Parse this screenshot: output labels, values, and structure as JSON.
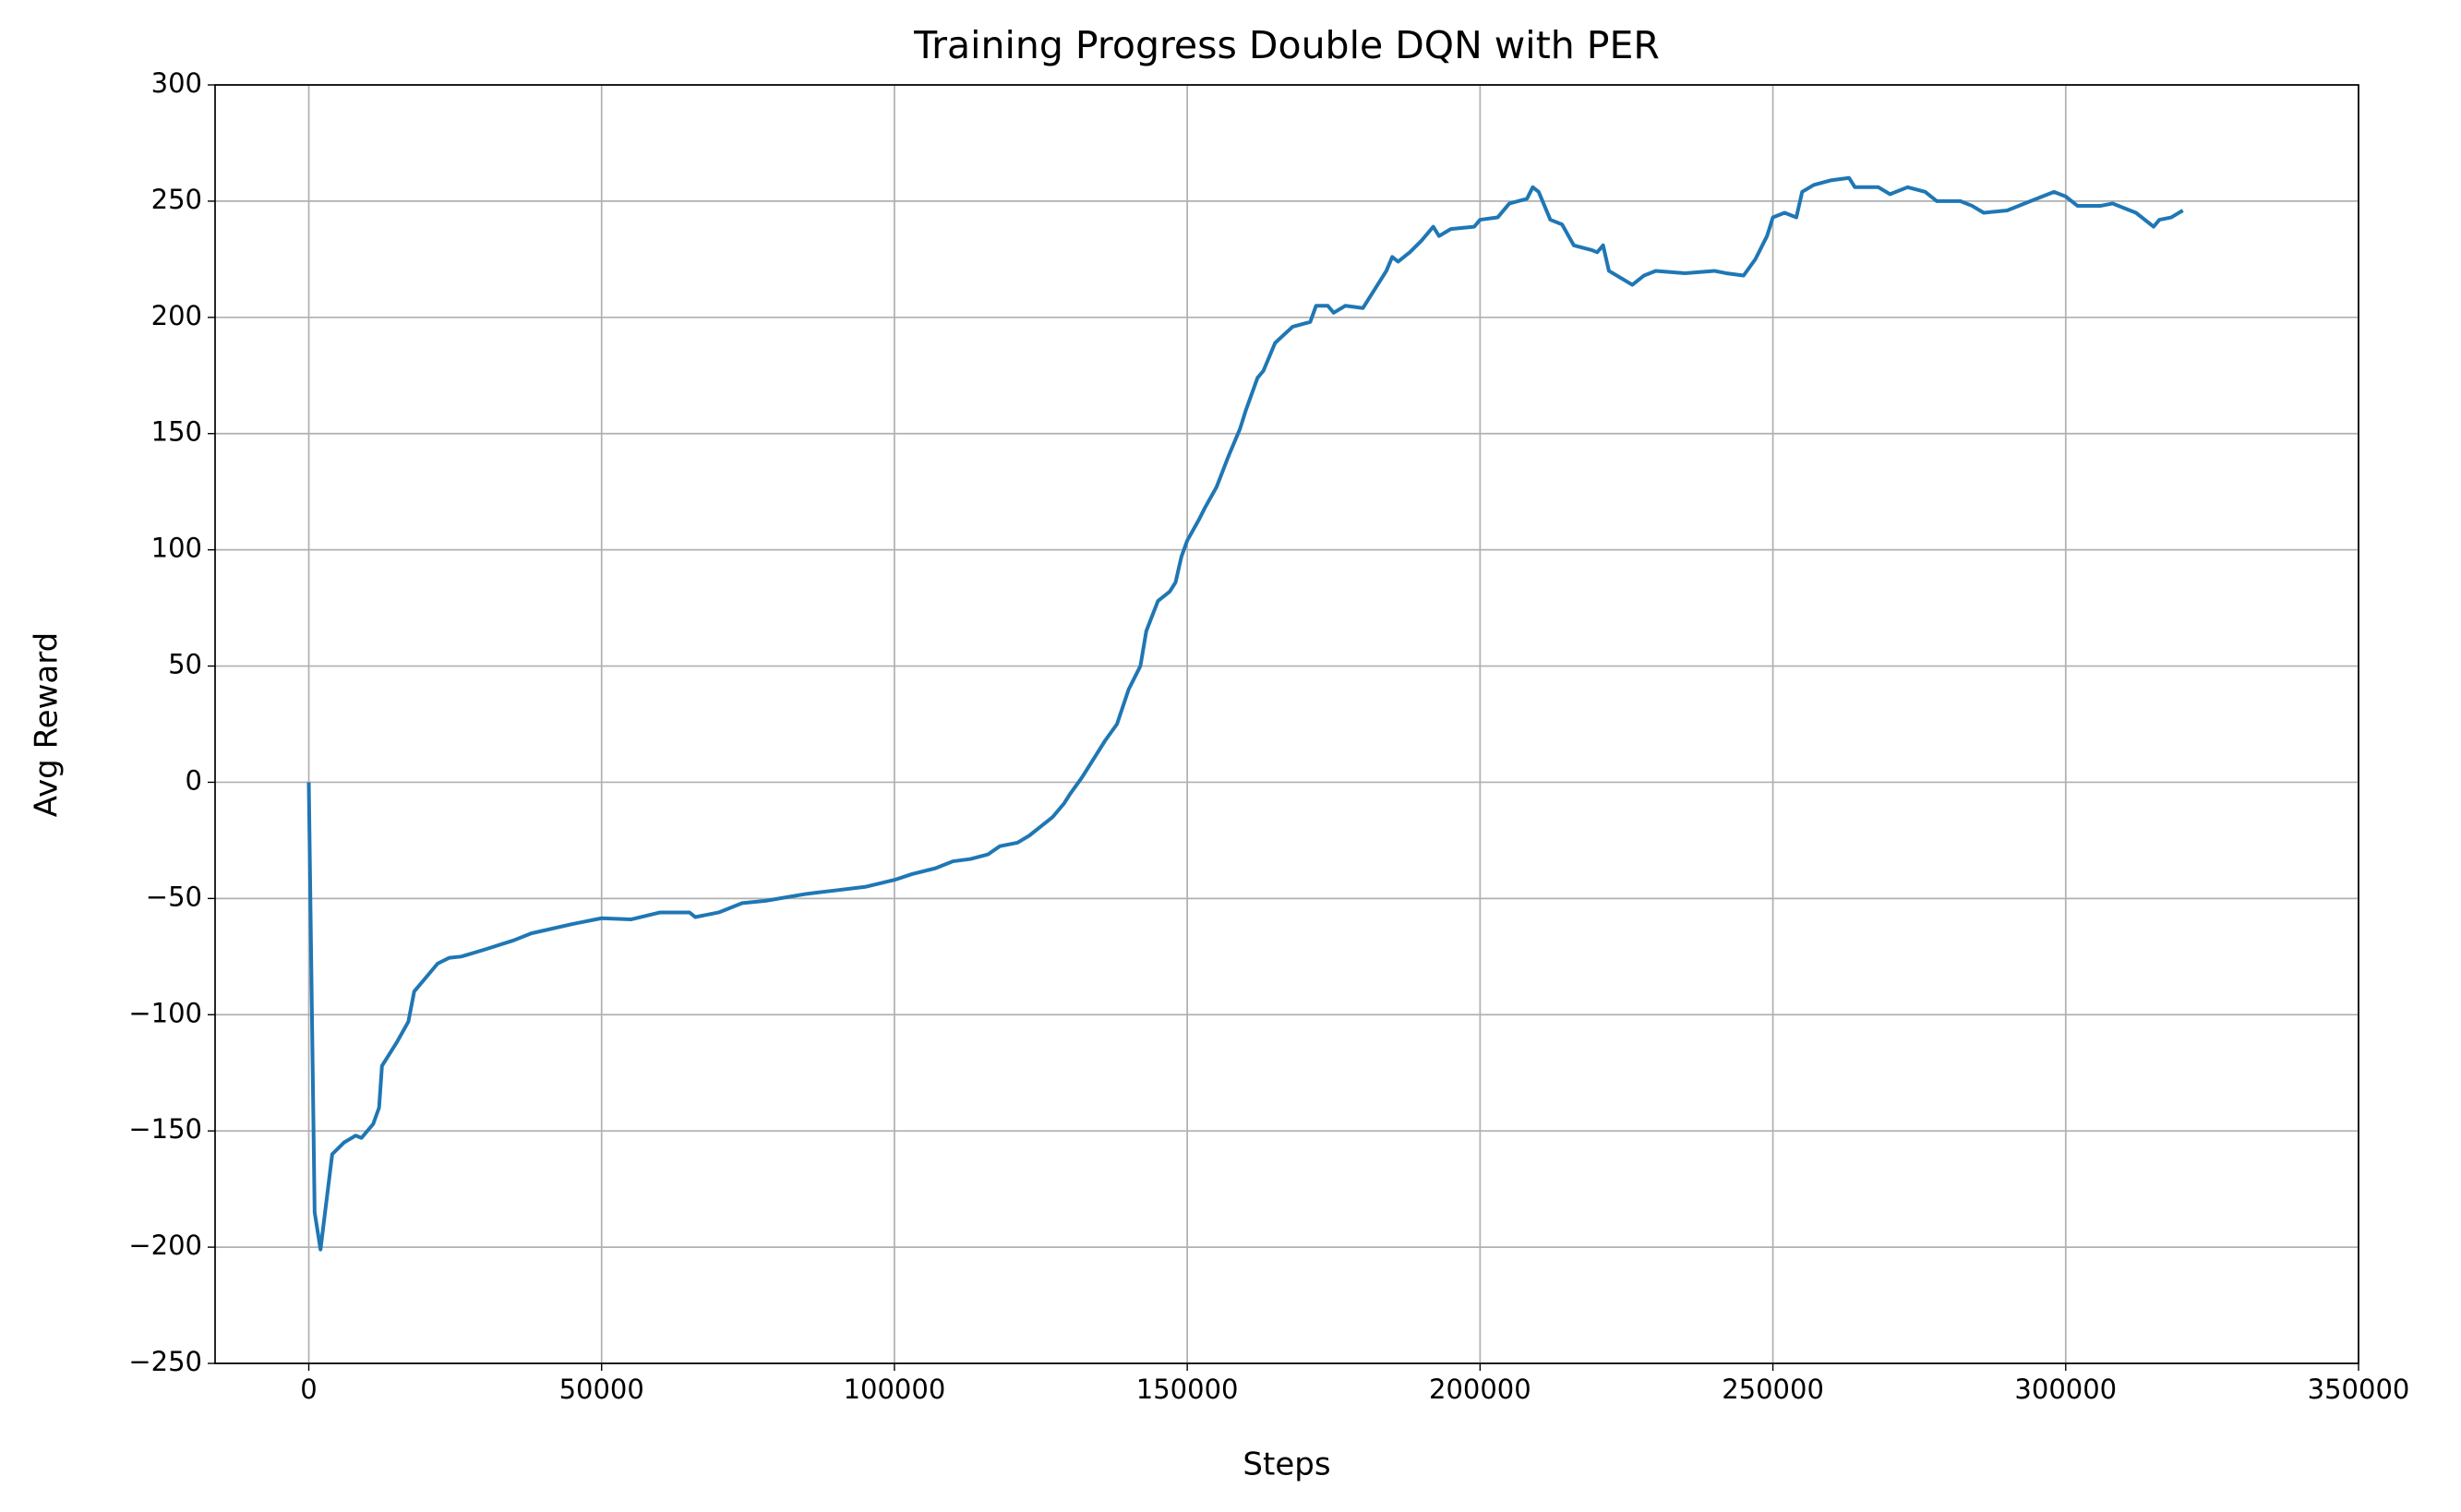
{
  "chart_data": {
    "type": "line",
    "title": "Training Progress Double DQN with PER",
    "xlabel": "Steps",
    "ylabel": "Avg Reward",
    "x": [
      0,
      1000,
      2000,
      4000,
      6000,
      8000,
      9000,
      11000,
      12000,
      12500,
      15000,
      17000,
      18000,
      20000,
      22000,
      24000,
      26000,
      30000,
      35000,
      38000,
      45000,
      50000,
      55000,
      60000,
      65000,
      66000,
      70000,
      74000,
      78000,
      85000,
      90000,
      95000,
      100000,
      103000,
      107000,
      110000,
      113000,
      116000,
      118000,
      121000,
      123000,
      125000,
      127000,
      129000,
      130000,
      132000,
      134000,
      136000,
      138000,
      140000,
      142000,
      143000,
      145000,
      147000,
      148000,
      149000,
      150000,
      152000,
      153000,
      155000,
      157000,
      159000,
      160000,
      162000,
      163000,
      165000,
      168000,
      171000,
      172000,
      174000,
      175000,
      177000,
      180000,
      182000,
      184000,
      185000,
      186000,
      188000,
      190000,
      192000,
      193000,
      195000,
      199000,
      200000,
      203000,
      205000,
      208000,
      209000,
      210000,
      212000,
      214000,
      216000,
      219000,
      220000,
      221000,
      222000,
      224000,
      226000,
      228000,
      230000,
      235000,
      240000,
      242000,
      245000,
      247000,
      249000,
      250000,
      252000,
      254000,
      255000,
      257000,
      260000,
      263000,
      264000,
      268000,
      270000,
      273000,
      276000,
      278000,
      282000,
      284000,
      286000,
      290000,
      294000,
      296000,
      298000,
      300000,
      302000,
      306000,
      308000,
      310000,
      312000,
      315000,
      316000,
      318000,
      320000
    ],
    "series": [
      {
        "name": "Avg Reward",
        "color": "#1f77b4",
        "values": [
          0,
          -185,
          -201,
          -160,
          -155,
          -152,
          -153,
          -147,
          -140,
          -122,
          -112,
          -103,
          -90,
          -84,
          -78,
          -75.5,
          -75,
          -72,
          -68,
          -65,
          -61,
          -58.5,
          -59,
          -56,
          -56,
          -58,
          -56,
          -52,
          -51,
          -48,
          -46.5,
          -45,
          -42,
          -39.5,
          -37,
          -34,
          -33,
          -31,
          -27.5,
          -26,
          -23,
          -19,
          -15,
          -9,
          -5,
          2,
          10,
          18,
          25,
          40,
          50,
          65,
          78,
          82,
          86,
          97,
          104,
          113,
          118,
          127,
          140,
          152,
          160,
          174,
          177,
          189,
          196,
          198,
          205,
          205,
          202,
          205,
          204,
          212,
          220,
          226,
          224,
          228,
          233,
          239,
          235,
          238,
          239,
          242,
          243,
          249,
          251,
          256,
          254,
          242,
          240,
          231,
          229,
          228,
          231,
          220,
          217,
          214,
          218,
          220,
          219,
          220,
          219,
          218,
          225,
          235,
          243,
          245,
          243,
          254,
          257,
          259,
          260,
          256,
          256,
          253,
          256,
          254,
          250,
          250,
          248,
          245,
          246,
          250,
          252,
          254,
          252,
          248,
          248,
          249,
          247,
          245,
          239,
          242,
          243,
          246
        ]
      }
    ],
    "xlim": [
      -16000,
      350000
    ],
    "ylim": [
      -250,
      300
    ],
    "xticks": [
      0,
      50000,
      100000,
      150000,
      200000,
      250000,
      300000,
      350000
    ],
    "yticks": [
      -250,
      -200,
      -150,
      -100,
      -50,
      0,
      50,
      100,
      150,
      200,
      250,
      300
    ],
    "grid": true
  }
}
